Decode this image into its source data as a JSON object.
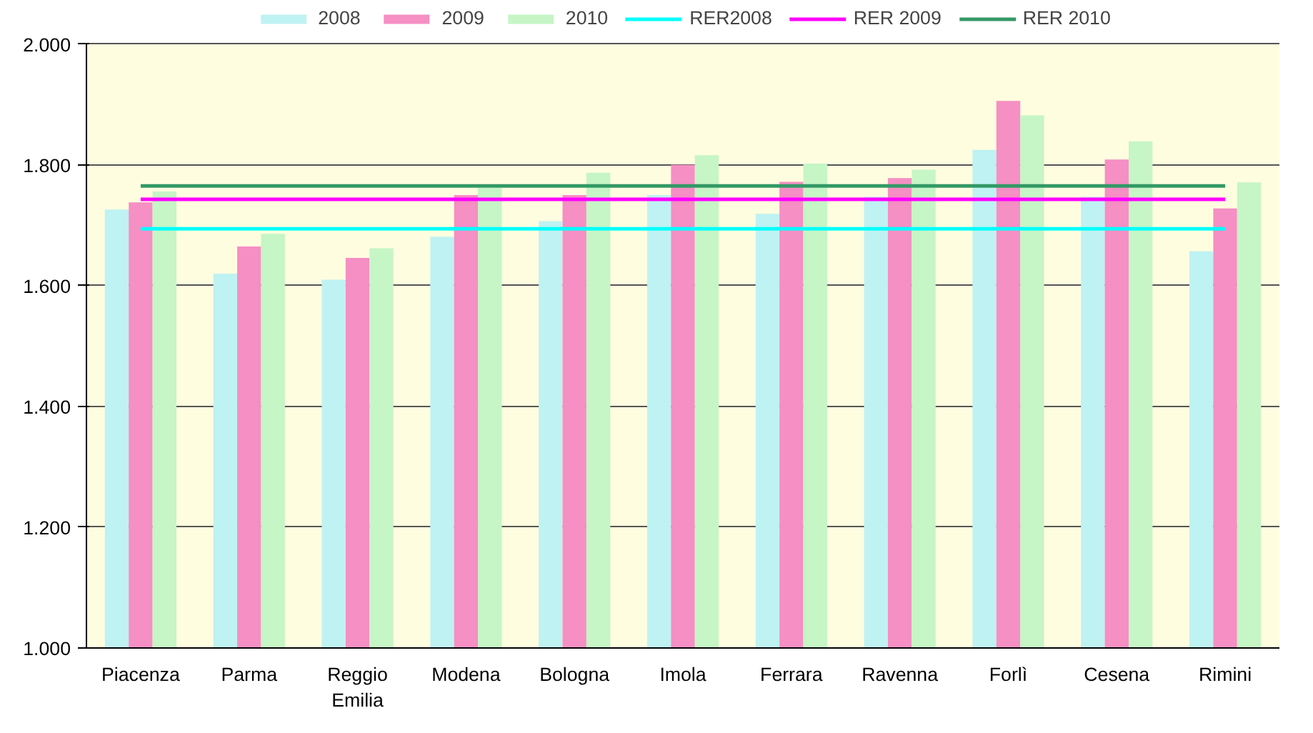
{
  "chart_data": {
    "type": "bar",
    "categories": [
      "Piacenza",
      "Parma",
      "Reggio Emilia",
      "Modena",
      "Bologna",
      "Imola",
      "Ferrara",
      "Ravenna",
      "Forlì",
      "Cesena",
      "Rimini"
    ],
    "series": [
      {
        "name": "2008",
        "color": "#bff2f2",
        "values": [
          1.726,
          1.62,
          1.61,
          1.681,
          1.707,
          1.75,
          1.719,
          1.747,
          1.825,
          1.747,
          1.657
        ]
      },
      {
        "name": "2009",
        "color": "#f58fc4",
        "values": [
          1.738,
          1.665,
          1.646,
          1.75,
          1.75,
          1.8,
          1.772,
          1.778,
          1.906,
          1.809,
          1.728
        ]
      },
      {
        "name": "2010",
        "color": "#c6f5c6",
        "values": [
          1.756,
          1.686,
          1.662,
          1.762,
          1.787,
          1.816,
          1.802,
          1.792,
          1.882,
          1.839,
          1.771
        ]
      },
      {
        "name": "RER2008",
        "type": "line",
        "color": "#00ffff",
        "values": [
          1.694,
          1.694,
          1.694,
          1.694,
          1.694,
          1.694,
          1.694,
          1.694,
          1.694,
          1.694,
          1.694
        ]
      },
      {
        "name": "RER 2009",
        "type": "line",
        "color": "#ff00ff",
        "values": [
          1.743,
          1.743,
          1.743,
          1.743,
          1.743,
          1.743,
          1.743,
          1.743,
          1.743,
          1.743,
          1.743
        ]
      },
      {
        "name": "RER 2010",
        "type": "line",
        "color": "#339966",
        "values": [
          1.765,
          1.765,
          1.765,
          1.765,
          1.765,
          1.765,
          1.765,
          1.765,
          1.765,
          1.765,
          1.765
        ]
      }
    ],
    "ylim": [
      1.0,
      2.0
    ],
    "yticks": [
      {
        "value": 1.0,
        "label": "1.000"
      },
      {
        "value": 1.2,
        "label": "1.200"
      },
      {
        "value": 1.4,
        "label": "1.400"
      },
      {
        "value": 1.6,
        "label": "1.600"
      },
      {
        "value": 1.8,
        "label": "1.800"
      },
      {
        "value": 2.0,
        "label": "2.000"
      }
    ],
    "grid": "y",
    "legend": "top",
    "marker": "none",
    "line_style": "solid"
  }
}
